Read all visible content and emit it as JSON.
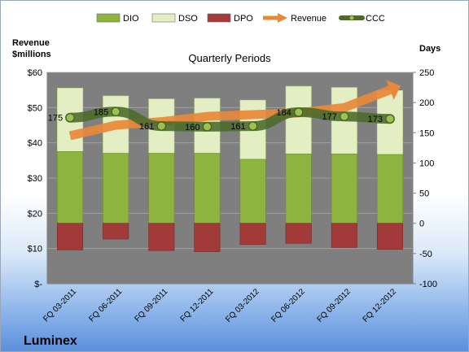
{
  "chart_data": {
    "type": "bar",
    "title": "Quarterly Periods",
    "company": "Luminex",
    "left_axis_label_line1": "Revenue",
    "left_axis_label_line2": "$millions",
    "right_axis_label": "Days",
    "categories": [
      "FQ 03-2011",
      "FQ 06-2011",
      "FQ 09-2011",
      "FQ 12-2011",
      "FQ 03-2012",
      "FQ 06-2012",
      "FQ 09-2012",
      "FQ 12-2012"
    ],
    "left_ylim": [
      0,
      60
    ],
    "left_ticks": [
      "$-",
      "$10",
      "$20",
      "$30",
      "$40",
      "$50",
      "$60"
    ],
    "right_ylim": [
      -100,
      250
    ],
    "right_ticks": [
      "-100",
      "-50",
      "0",
      "50",
      "100",
      "150",
      "200",
      "250"
    ],
    "series": [
      {
        "name": "DIO",
        "axis": "right",
        "color": "#8db43e",
        "values": [
          119,
          116,
          116,
          116,
          106,
          115,
          115,
          114
        ]
      },
      {
        "name": "DSO",
        "axis": "right",
        "color": "#e3efc2",
        "values": [
          105,
          95,
          90,
          91,
          98,
          112,
          110,
          106
        ]
      },
      {
        "name": "DPO",
        "axis": "right",
        "color": "#a33a3a",
        "values": [
          -44,
          -26,
          -45,
          -47,
          -35,
          -33,
          -40,
          -43
        ]
      },
      {
        "name": "Revenue",
        "axis": "left",
        "color": "#e8893a",
        "values": [
          42.0,
          45.0,
          46.0,
          47.5,
          48.0,
          48.5,
          50.0,
          55.0
        ]
      },
      {
        "name": "CCC",
        "axis": "right",
        "color": "#4e6b2c",
        "values": [
          175,
          185,
          161,
          160,
          161,
          184,
          177,
          173
        ]
      }
    ],
    "ccc_labels": [
      "175",
      "185",
      "161",
      "160",
      "161",
      "184",
      "177",
      "173"
    ],
    "plot_background": "#7f7f7f",
    "grid": true,
    "legend_position": "top"
  }
}
